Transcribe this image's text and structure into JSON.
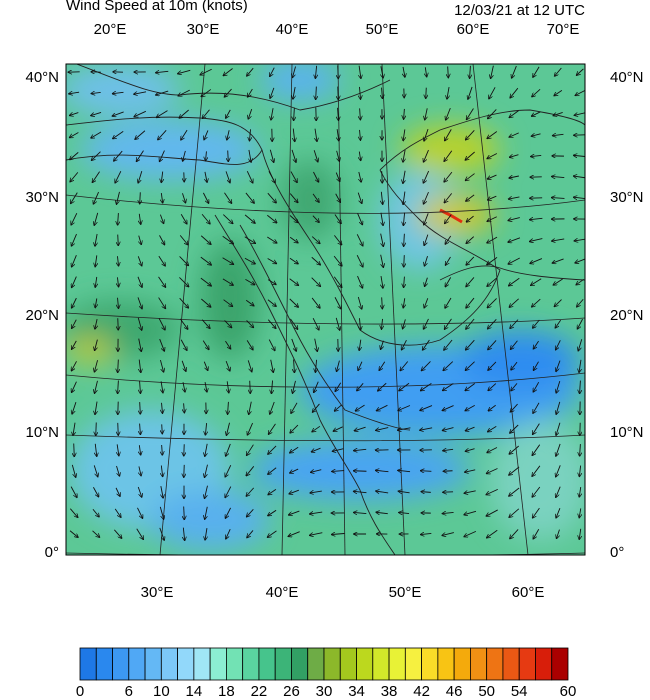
{
  "header": {
    "title": "Wind Speed at 10m (knots)",
    "valid_time": "12/03/21 at 12 UTC"
  },
  "map": {
    "top_lon_labels": [
      "20°E",
      "30°E",
      "40°E",
      "50°E",
      "60°E",
      "70°E"
    ],
    "bottom_lon_labels": [
      "30°E",
      "40°E",
      "50°E",
      "60°E"
    ],
    "lat_labels": [
      "40°N",
      "30°N",
      "20°N",
      "10°N",
      "0°"
    ]
  },
  "colorbar": {
    "labels": [
      0,
      6,
      10,
      14,
      18,
      22,
      26,
      30,
      34,
      38,
      42,
      46,
      50,
      54,
      60
    ],
    "colors": [
      "#1e78e6",
      "#2a88ee",
      "#3c98f2",
      "#50a8f5",
      "#64b8f5",
      "#7cc8f8",
      "#92d8fa",
      "#a0e6f5",
      "#8ceed2",
      "#72e2b4",
      "#5ad4a0",
      "#46c48c",
      "#3cb478",
      "#32a064",
      "#6eac46",
      "#8cb82a",
      "#a4c81e",
      "#bcd81e",
      "#d2e82a",
      "#e8f236",
      "#f6f040",
      "#fadc28",
      "#f8c414",
      "#f4aa0c",
      "#f09014",
      "#ee7414",
      "#ea5814",
      "#e63a12",
      "#d81e0a",
      "#aa0000"
    ]
  }
}
